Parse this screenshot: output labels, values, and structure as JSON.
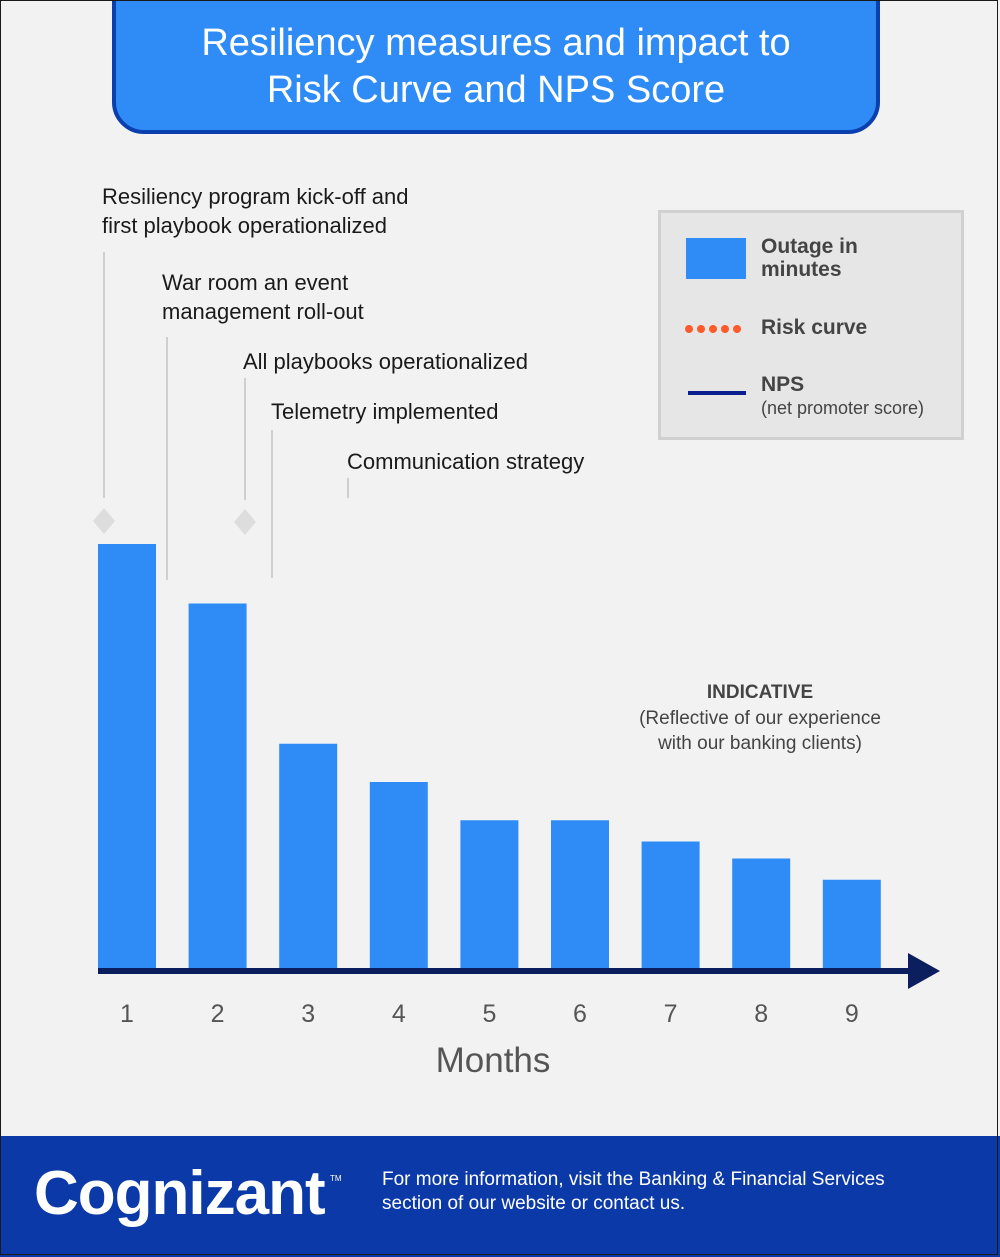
{
  "title": "Resiliency measures and impact to\nRisk Curve and NPS Score",
  "milestones": [
    "Resiliency program kick-off and\nfirst playbook operationalized",
    "War room an event\nmanagement roll-out",
    "All playbooks operationalized",
    "Telemetry implemented",
    "Communication strategy"
  ],
  "legend": {
    "outage_label": "Outage in\nminutes",
    "risk_label": "Risk curve",
    "nps_label": "NPS",
    "nps_sub": "(net promoter score)"
  },
  "indicative": {
    "title": "INDICATIVE",
    "subtitle": "(Reflective of our experience\nwith our banking clients)"
  },
  "footer": {
    "logo": "Cognizant",
    "text": "For more information, visit the Banking & Financial Services\nsection of our website or contact us."
  },
  "colors": {
    "bar": "#2f8cf7",
    "axis": "#0b1e5e",
    "risk": "#ff5a2b",
    "nps": "#0b1e8e",
    "footer": "#0b3aa8"
  },
  "chart_data": {
    "type": "bar",
    "title": "Resiliency measures and impact to Risk Curve and NPS Score",
    "xlabel": "Months",
    "ylabel": "",
    "categories": [
      "1",
      "2",
      "3",
      "4",
      "5",
      "6",
      "7",
      "8",
      "9"
    ],
    "series": [
      {
        "name": "Outage in minutes",
        "values": [
          100,
          86,
          53,
          44,
          35,
          35,
          30,
          26,
          21
        ]
      }
    ],
    "ylim": [
      0,
      100
    ],
    "y_axis_shown": false,
    "grid": false,
    "legend_position": "top-right"
  }
}
